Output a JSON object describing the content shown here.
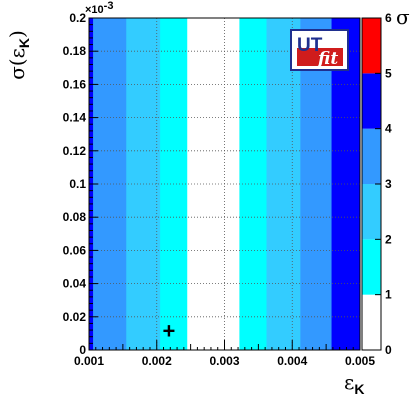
{
  "chart_data": {
    "type": "heatmap",
    "xlabel_symbol": "ε",
    "xlabel_sub": "K",
    "ylabel_symbol": "σ(ε",
    "ylabel_sub": "K",
    "ylabel_close": ")",
    "y_exponent": "×10",
    "y_exponent_power": "-3",
    "xlim": [
      0.001,
      0.005
    ],
    "ylim": [
      0,
      0.2
    ],
    "x_ticks": [
      "0.001",
      "0.002",
      "0.003",
      "0.004",
      "0.005"
    ],
    "x_tick_values": [
      0.001,
      0.002,
      0.003,
      0.004,
      0.005
    ],
    "y_ticks": [
      "0",
      "0.02",
      "0.04",
      "0.06",
      "0.08",
      "0.1",
      "0.12",
      "0.14",
      "0.16",
      "0.18",
      "0.2"
    ],
    "y_tick_values": [
      0,
      0.02,
      0.04,
      0.06,
      0.08,
      0.1,
      0.12,
      0.14,
      0.16,
      0.18,
      0.2
    ],
    "grid": true,
    "colorbar": {
      "title": "σ",
      "min": 0,
      "max": 6,
      "ticks": [
        "0",
        "1",
        "2",
        "3",
        "4",
        "5",
        "6"
      ],
      "levels": [
        {
          "from": 0,
          "to": 1,
          "color": "#ffffff"
        },
        {
          "from": 1,
          "to": 2,
          "color": "#00ffff"
        },
        {
          "from": 2,
          "to": 3,
          "color": "#33ccff"
        },
        {
          "from": 3,
          "to": 4,
          "color": "#3399ff"
        },
        {
          "from": 4,
          "to": 5,
          "color": "#0000ff"
        },
        {
          "from": 5,
          "to": 6,
          "color": "#ff0000"
        }
      ]
    },
    "bands": [
      {
        "x0": 0.001,
        "x1": 0.00106,
        "level": 4
      },
      {
        "x0": 0.00106,
        "x1": 0.00155,
        "level": 3
      },
      {
        "x0": 0.00155,
        "x1": 0.00205,
        "level": 2
      },
      {
        "x0": 0.00205,
        "x1": 0.00245,
        "level": 1
      },
      {
        "x0": 0.00245,
        "x1": 0.00322,
        "level": 0
      },
      {
        "x0": 0.00322,
        "x1": 0.00362,
        "level": 1
      },
      {
        "x0": 0.00362,
        "x1": 0.00412,
        "level": 2
      },
      {
        "x0": 0.00412,
        "x1": 0.00458,
        "level": 3
      },
      {
        "x0": 0.00458,
        "x1": 0.005,
        "level": 4
      }
    ],
    "marker": {
      "x": 0.00218,
      "y": 0.011,
      "symbol": "+"
    },
    "logo": {
      "part1": "UT",
      "part2": "fit"
    }
  }
}
